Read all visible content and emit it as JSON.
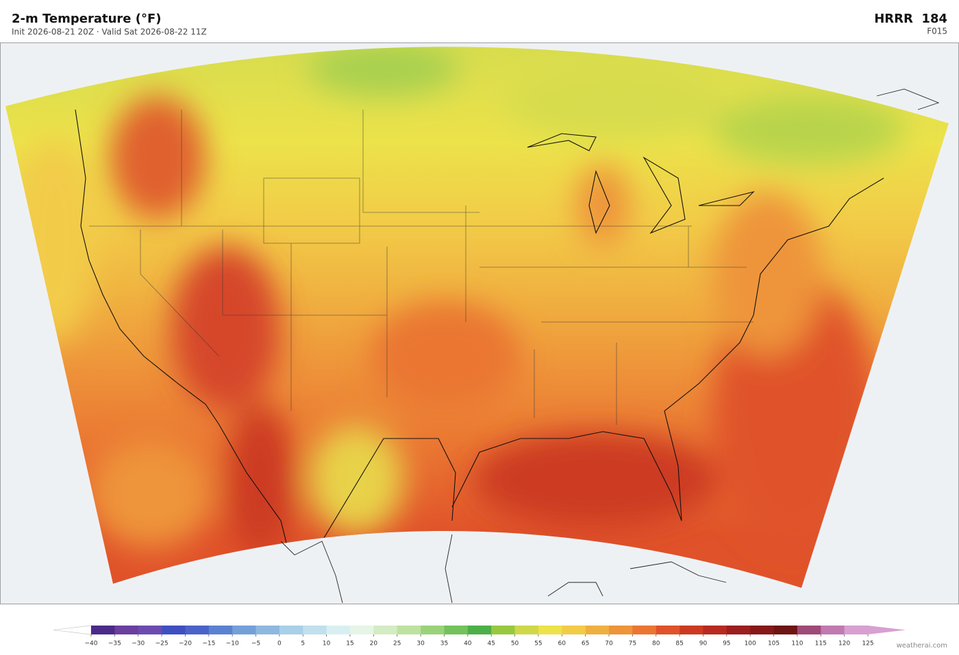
{
  "header": {
    "title": "2-m Temperature  (°F)",
    "subtitle": "Init 2026-08-21 20Z  ·  Valid Sat 2026-08-22 11Z",
    "model": "HRRR  184",
    "forecast": "F015"
  },
  "colorbar": {
    "ticks": [
      {
        "value": -40,
        "label": "−40"
      },
      {
        "value": -35,
        "label": "−35"
      },
      {
        "value": -30,
        "label": "−30"
      },
      {
        "value": -25,
        "label": "−25"
      },
      {
        "value": -20,
        "label": "−20"
      },
      {
        "value": -15,
        "label": "−15"
      },
      {
        "value": -10,
        "label": "−10"
      },
      {
        "value": -5,
        "label": "−5"
      },
      0,
      5,
      10,
      15,
      20,
      25,
      30,
      35,
      40,
      45,
      50,
      55,
      60,
      65,
      70,
      75,
      80,
      85,
      90,
      95,
      100,
      105,
      110,
      115,
      120,
      125
    ],
    "colors": [
      "#4b2a8a",
      "#6a3fa0",
      "#6b4bb0",
      "#3f4fc0",
      "#4a63c8",
      "#5b82d0",
      "#74a0d8",
      "#8fb8e0",
      "#a8d0e8",
      "#c0e0ee",
      "#d8eff2",
      "#e6f5e6",
      "#d4ecc4",
      "#bde2a0",
      "#9ad27a",
      "#73c25c",
      "#4caf4a",
      "#98c840",
      "#cfd84a",
      "#ece24a",
      "#f2cc48",
      "#f0b040",
      "#ee943a",
      "#ea7632",
      "#e0522a",
      "#cc3a22",
      "#b82a20",
      "#9c1e1e",
      "#861818",
      "#6e1414",
      "#a04a78",
      "#c07ab0",
      "#d8a0d0"
    ],
    "under_color": "#ffffff",
    "over_color": "#d8a0d0"
  },
  "credit": "weatherai.com"
}
